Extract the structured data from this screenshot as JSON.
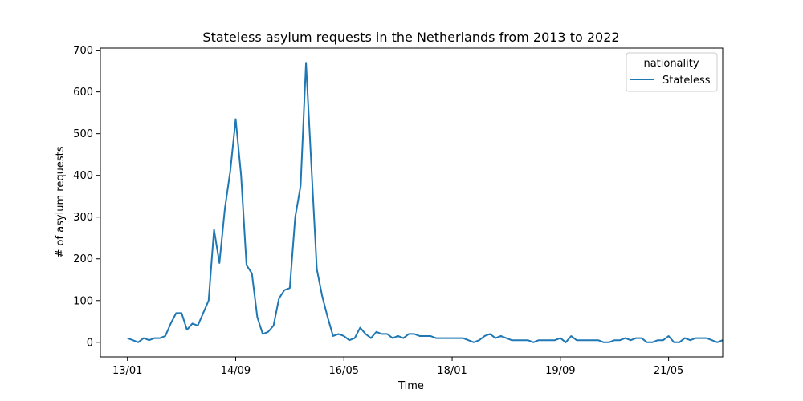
{
  "chart_data": {
    "type": "line",
    "title": "Stateless asylum requests in the Netherlands from 2013 to 2022",
    "xlabel": "Time",
    "ylabel": "# of asylum requests",
    "x_ticks": [
      "13/01",
      "14/09",
      "16/05",
      "18/01",
      "19/09",
      "21/05"
    ],
    "x_tick_positions": [
      0,
      20,
      40,
      60,
      80,
      100
    ],
    "xlim": [
      -5,
      110
    ],
    "ylim": [
      -35,
      705
    ],
    "y_ticks": [
      0,
      100,
      200,
      300,
      400,
      500,
      600,
      700
    ],
    "legend": {
      "title": "nationality",
      "position": "top-right"
    },
    "grid": false,
    "series": [
      {
        "name": "Stateless",
        "color": "#1f77b4",
        "values": [
          10,
          5,
          0,
          10,
          5,
          10,
          10,
          15,
          45,
          70,
          70,
          30,
          45,
          40,
          70,
          100,
          270,
          190,
          320,
          410,
          535,
          400,
          185,
          165,
          60,
          20,
          25,
          40,
          105,
          125,
          130,
          300,
          375,
          670,
          420,
          175,
          110,
          60,
          15,
          20,
          15,
          5,
          10,
          35,
          20,
          10,
          25,
          20,
          20,
          10,
          15,
          10,
          20,
          20,
          15,
          15,
          15,
          10,
          10,
          10,
          10,
          10,
          10,
          5,
          0,
          5,
          15,
          20,
          10,
          15,
          10,
          5,
          5,
          5,
          5,
          0,
          5,
          5,
          5,
          5,
          10,
          0,
          15,
          5,
          5,
          5,
          5,
          5,
          0,
          0,
          5,
          5,
          10,
          5,
          10,
          10,
          0,
          0,
          5,
          5,
          15,
          0,
          0,
          10,
          5,
          10,
          10,
          10,
          5,
          0,
          5
        ]
      }
    ]
  }
}
